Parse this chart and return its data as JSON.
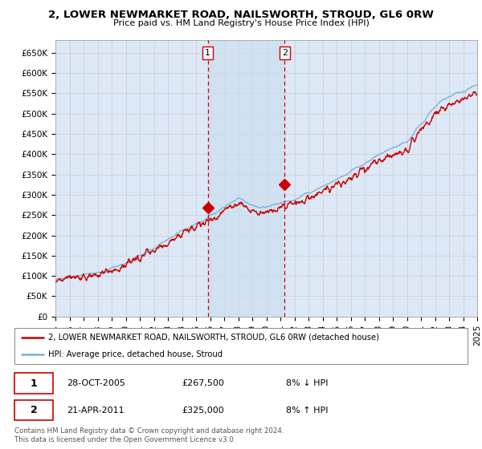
{
  "title": "2, LOWER NEWMARKET ROAD, NAILSWORTH, STROUD, GL6 0RW",
  "subtitle": "Price paid vs. HM Land Registry's House Price Index (HPI)",
  "ylim": [
    0,
    680000
  ],
  "yticks": [
    0,
    50000,
    100000,
    150000,
    200000,
    250000,
    300000,
    350000,
    400000,
    450000,
    500000,
    550000,
    600000,
    650000
  ],
  "line_color_red": "#cc0000",
  "line_color_blue": "#7aafd4",
  "bg_color": "#dce8f5",
  "shade_color": "#d0e4f5",
  "grid_color": "#cccccc",
  "vline_color": "#cc0000",
  "marker1_year": 2005.83,
  "marker2_year": 2011.3,
  "marker1_price": 267500,
  "marker2_price": 325000,
  "legend_line1": "2, LOWER NEWMARKET ROAD, NAILSWORTH, STROUD, GL6 0RW (detached house)",
  "legend_line2": "HPI: Average price, detached house, Stroud",
  "table_row1_date": "28-OCT-2005",
  "table_row1_price": "£267,500",
  "table_row1_hpi": "8% ↓ HPI",
  "table_row2_date": "21-APR-2011",
  "table_row2_price": "£325,000",
  "table_row2_hpi": "8% ↑ HPI",
  "footer": "Contains HM Land Registry data © Crown copyright and database right 2024.\nThis data is licensed under the Open Government Licence v3.0.",
  "xstart": 1995,
  "xend": 2025
}
